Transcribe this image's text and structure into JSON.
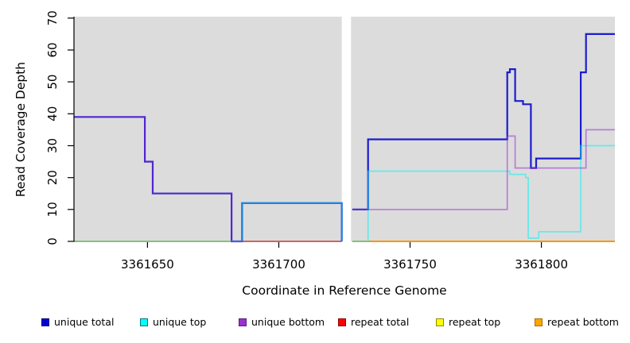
{
  "chart_data": {
    "type": "line",
    "subtype": "step-coverage-plot",
    "title": "",
    "xlabel": "Coordinate in Reference Genome",
    "ylabel": "Read Coverage Depth",
    "xlim": [
      3361622,
      3361828
    ],
    "ylim": [
      0,
      70
    ],
    "x_ticks": [
      3361650,
      3361700,
      3361750,
      3361800
    ],
    "y_ticks": [
      0,
      10,
      20,
      30,
      40,
      50,
      60,
      70
    ],
    "gap_region": [
      3361724,
      3361727.5
    ],
    "panel_bg": "#DCDCDC",
    "grid": false,
    "legend_position": "bottom",
    "series": [
      {
        "name": "repeat total",
        "color": "#E10000",
        "width": 1.6,
        "opacity": 1,
        "segments": [
          [
            [
              3361622,
              0
            ],
            [
              3361724,
              null
            ]
          ],
          [
            [
              3361728,
              0
            ],
            [
              3361828,
              null
            ]
          ]
        ]
      },
      {
        "name": "repeat top",
        "color": "#FFFF00",
        "width": 1.6,
        "opacity": 1,
        "segments": [
          [
            [
              3361622,
              0
            ],
            [
              3361724,
              null
            ]
          ],
          [
            [
              3361728,
              0
            ],
            [
              3361828,
              null
            ]
          ]
        ]
      },
      {
        "name": "repeat bottom",
        "color": "#FF9400",
        "width": 2,
        "opacity": 1,
        "segments": [
          [
            [
              3361622,
              0
            ],
            [
              3361724,
              null
            ]
          ],
          [
            [
              3361728,
              0
            ],
            [
              3361828,
              null
            ]
          ]
        ]
      },
      {
        "name": "unique total",
        "color": "#1C1CCE",
        "width": 2.2,
        "opacity": 1,
        "segments": [
          [
            [
              3361622,
              39
            ],
            [
              3361649,
              25
            ],
            [
              3361652,
              15
            ],
            [
              3361682,
              0
            ],
            [
              3361686,
              12
            ],
            [
              3361724,
              0
            ],
            [
              3361724,
              null
            ]
          ],
          [
            [
              3361728,
              10
            ],
            [
              3361734,
              32
            ],
            [
              3361787,
              53
            ],
            [
              3361788,
              54
            ],
            [
              3361790,
              44
            ],
            [
              3361793,
              43
            ],
            [
              3361796,
              23
            ],
            [
              3361798,
              26
            ],
            [
              3361815,
              53
            ],
            [
              3361817,
              65
            ],
            [
              3361828,
              null
            ]
          ]
        ]
      },
      {
        "name": "unique top",
        "color": "#00F5F5",
        "width": 1.7,
        "opacity": 0.55,
        "segments": [
          [
            [
              3361622,
              0
            ],
            [
              3361686,
              12
            ],
            [
              3361724,
              0
            ],
            [
              3361724,
              null
            ]
          ],
          [
            [
              3361728,
              0
            ],
            [
              3361734,
              22
            ],
            [
              3361788,
              21
            ],
            [
              3361794,
              20
            ],
            [
              3361795,
              1
            ],
            [
              3361799,
              3
            ],
            [
              3361815,
              30
            ],
            [
              3361828,
              null
            ]
          ]
        ]
      },
      {
        "name": "unique bottom",
        "color": "#9932CC",
        "width": 1.7,
        "opacity": 0.55,
        "segments": [
          [
            [
              3361622,
              39
            ],
            [
              3361649,
              25
            ],
            [
              3361652,
              15
            ],
            [
              3361682,
              0
            ],
            [
              3361724,
              null
            ]
          ],
          [
            [
              3361728,
              10
            ],
            [
              3361787,
              33
            ],
            [
              3361790,
              23
            ],
            [
              3361817,
              35
            ],
            [
              3361828,
              null
            ]
          ]
        ]
      }
    ],
    "legend": [
      {
        "label": "unique total",
        "fill": "#0000D5",
        "border": "#000080"
      },
      {
        "label": "unique top",
        "fill": "#00FFFF",
        "border": "#007A7A"
      },
      {
        "label": "unique bottom",
        "fill": "#9932CC",
        "border": "#5C1687"
      },
      {
        "label": "repeat total",
        "fill": "#FF0000",
        "border": "#900000"
      },
      {
        "label": "repeat top",
        "fill": "#FFFF00",
        "border": "#8C8C00"
      },
      {
        "label": "repeat bottom",
        "fill": "#FFA500",
        "border": "#A86E00"
      }
    ]
  }
}
